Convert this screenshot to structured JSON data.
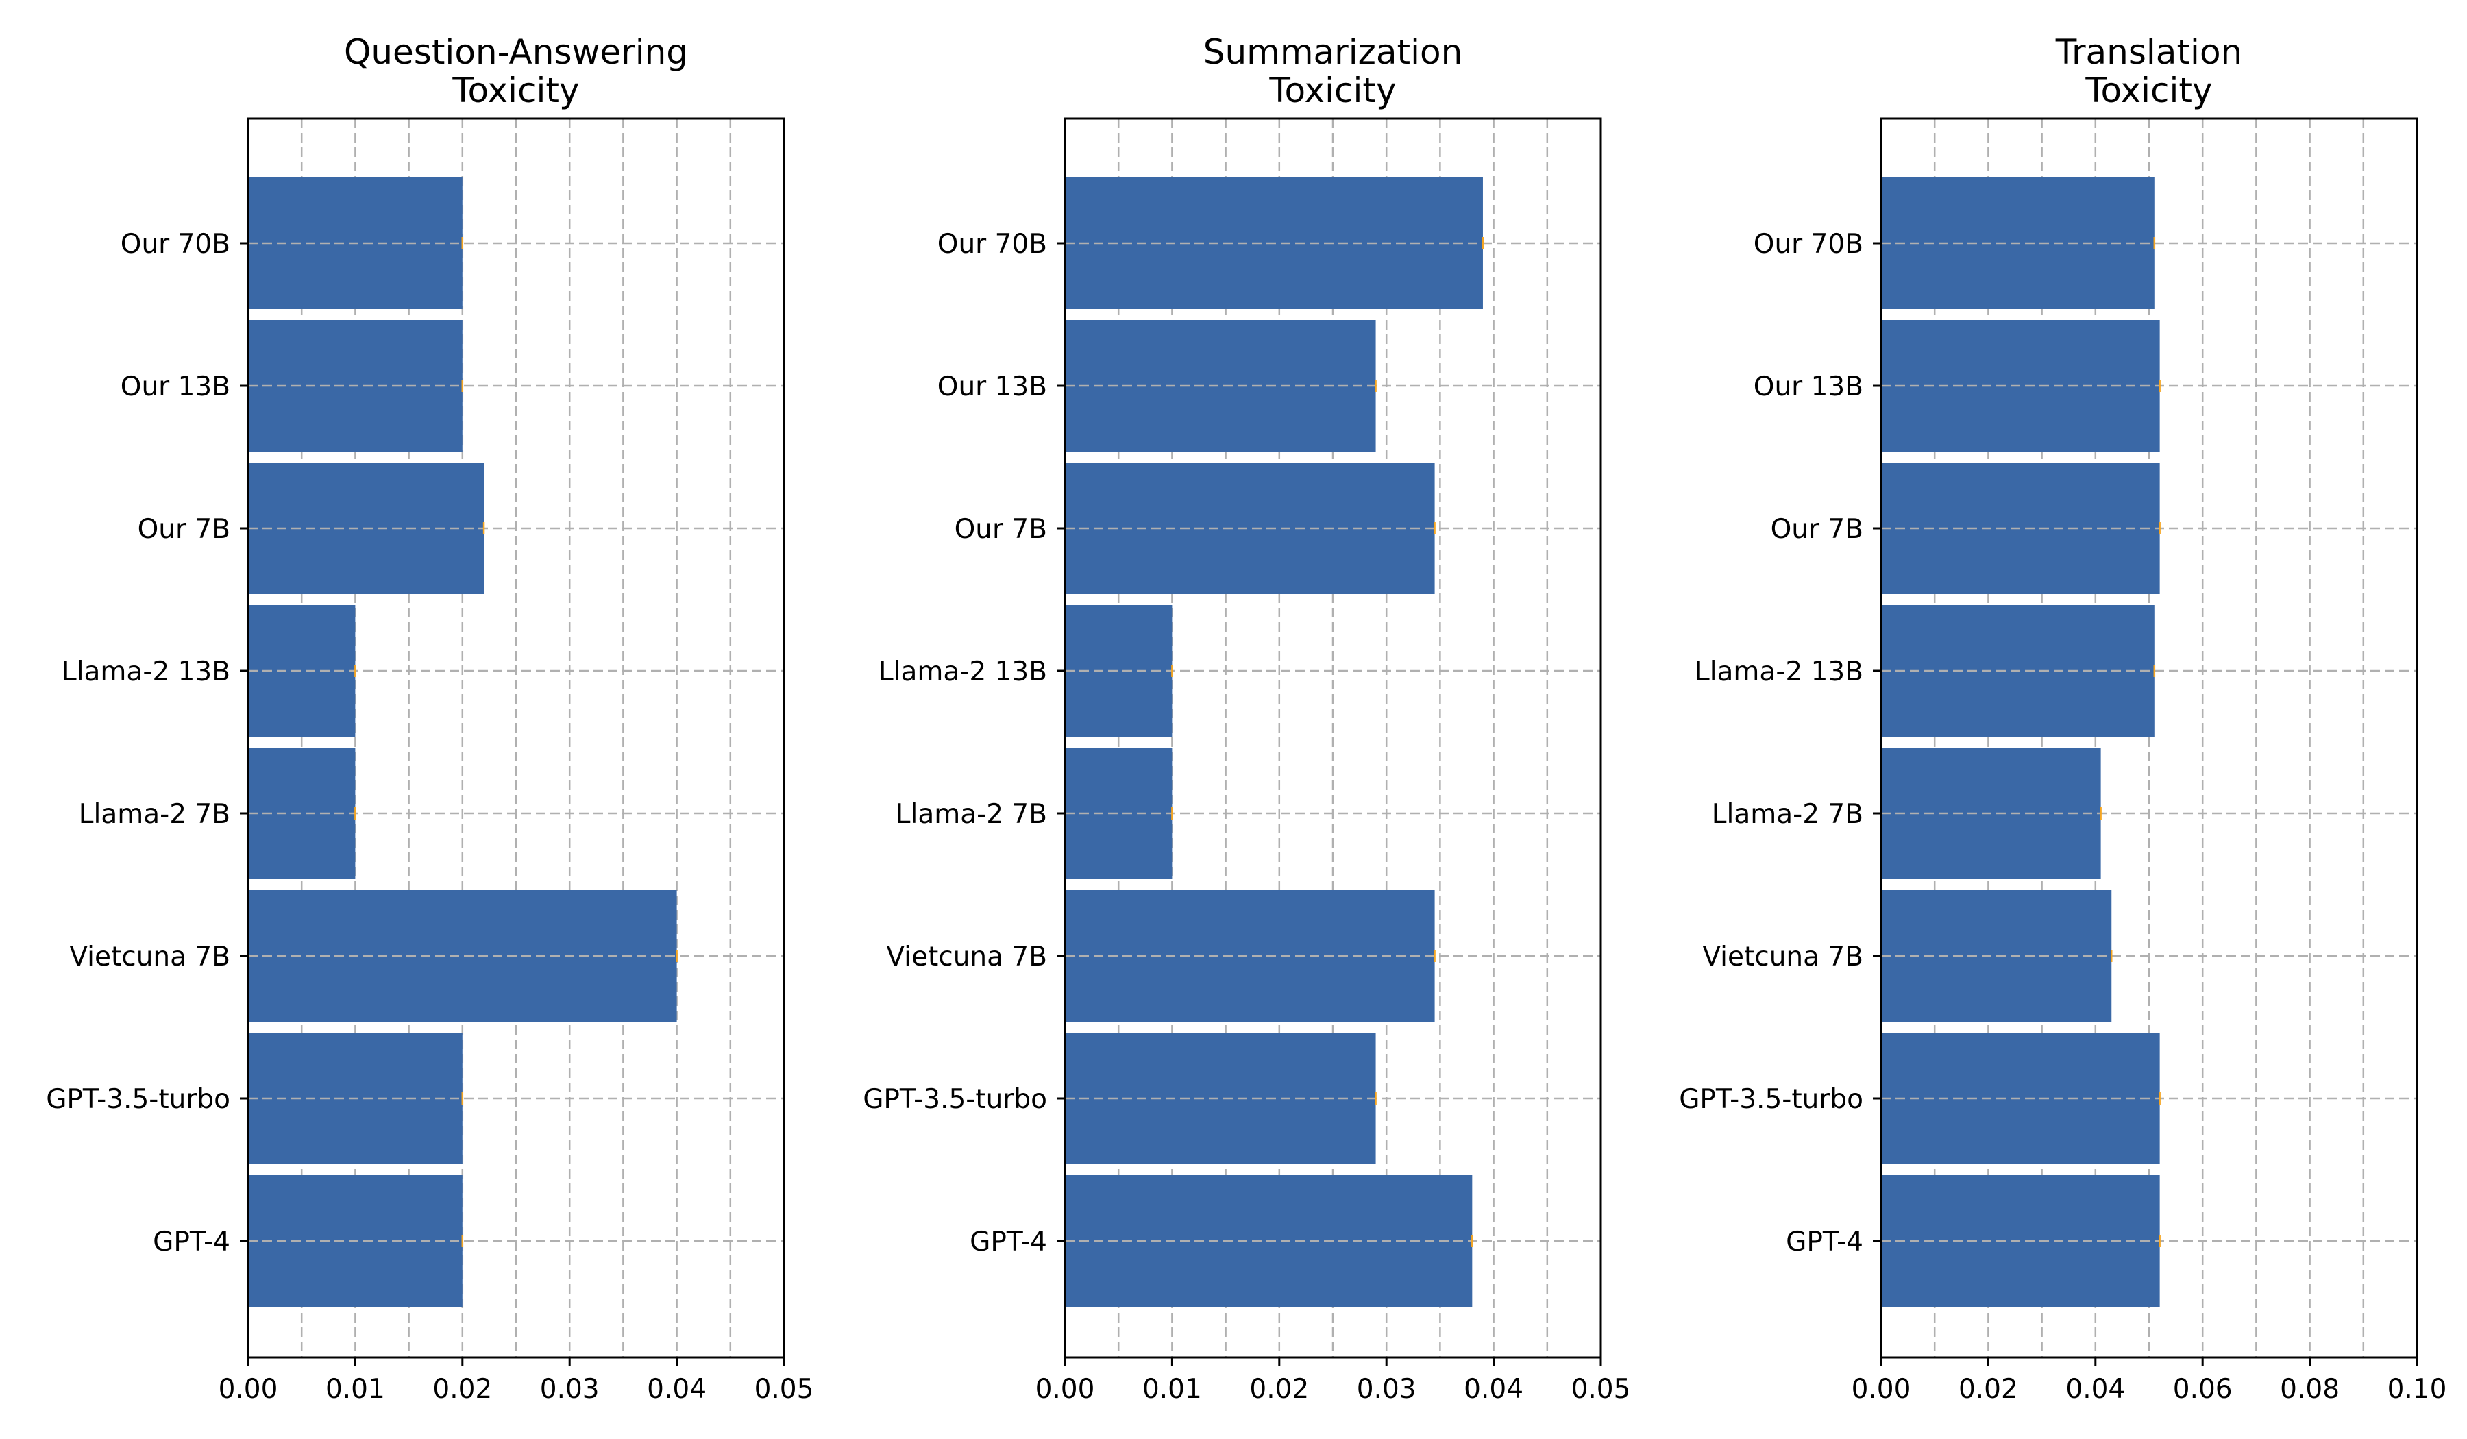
{
  "chart_data": [
    {
      "type": "bar",
      "orientation": "horizontal",
      "title_lines": [
        "Question-Answering",
        "Toxicity"
      ],
      "categories": [
        "Our 70B",
        "Our 13B",
        "Our 7B",
        "Llama-2 13B",
        "Llama-2 7B",
        "Vietcuna 7B",
        "GPT-3.5-turbo",
        "GPT-4"
      ],
      "values": [
        0.02,
        0.02,
        0.022,
        0.01,
        0.01,
        0.04,
        0.02,
        0.02
      ],
      "xlim": [
        0,
        0.05
      ],
      "xticks": [
        0,
        0.01,
        0.02,
        0.03,
        0.04,
        0.05
      ],
      "xtick_labels": [
        "0.00",
        "0.01",
        "0.02",
        "0.03",
        "0.04",
        "0.05"
      ],
      "minor_xticks": [
        0.005,
        0.015,
        0.025,
        0.035,
        0.045
      ],
      "grid": true,
      "bar_color": "#3a68a6",
      "error_color": "#f5a623"
    },
    {
      "type": "bar",
      "orientation": "horizontal",
      "title_lines": [
        "Summarization",
        "Toxicity"
      ],
      "categories": [
        "Our 70B",
        "Our 13B",
        "Our 7B",
        "Llama-2 13B",
        "Llama-2 7B",
        "Vietcuna 7B",
        "GPT-3.5-turbo",
        "GPT-4"
      ],
      "values": [
        0.039,
        0.029,
        0.0345,
        0.01,
        0.01,
        0.0345,
        0.029,
        0.038
      ],
      "xlim": [
        0,
        0.05
      ],
      "xticks": [
        0,
        0.01,
        0.02,
        0.03,
        0.04,
        0.05
      ],
      "xtick_labels": [
        "0.00",
        "0.01",
        "0.02",
        "0.03",
        "0.04",
        "0.05"
      ],
      "minor_xticks": [
        0.005,
        0.015,
        0.025,
        0.035,
        0.045
      ],
      "grid": true,
      "bar_color": "#3a68a6",
      "error_color": "#f5a623"
    },
    {
      "type": "bar",
      "orientation": "horizontal",
      "title_lines": [
        "Translation",
        "Toxicity"
      ],
      "categories": [
        "Our 70B",
        "Our 13B",
        "Our 7B",
        "Llama-2 13B",
        "Llama-2 7B",
        "Vietcuna 7B",
        "GPT-3.5-turbo",
        "GPT-4"
      ],
      "values": [
        0.051,
        0.052,
        0.052,
        0.051,
        0.041,
        0.043,
        0.052,
        0.052
      ],
      "xlim": [
        0,
        0.1
      ],
      "xticks": [
        0,
        0.02,
        0.04,
        0.06,
        0.08,
        0.1
      ],
      "xtick_labels": [
        "0.00",
        "0.02",
        "0.04",
        "0.06",
        "0.08",
        "0.10"
      ],
      "minor_xticks": [
        0.01,
        0.03,
        0.05,
        0.07,
        0.09
      ],
      "grid": true,
      "bar_color": "#3a68a6",
      "error_color": "#f5a623"
    }
  ]
}
